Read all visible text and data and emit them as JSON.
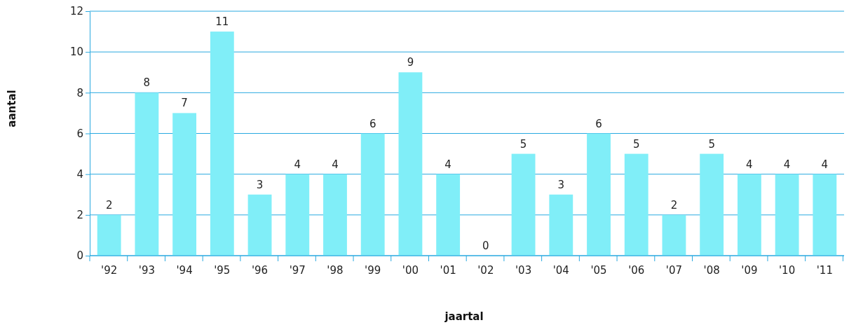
{
  "chart_data": {
    "type": "bar",
    "xlabel": "jaartal",
    "ylabel": "aantal",
    "categories": [
      "'92",
      "'93",
      "'94",
      "'95",
      "'96",
      "'97",
      "'98",
      "'99",
      "'00",
      "'01",
      "'02",
      "'03",
      "'04",
      "'05",
      "'06",
      "'07",
      "'08",
      "'09",
      "'10",
      "'11"
    ],
    "values": [
      2,
      8,
      7,
      11,
      3,
      4,
      4,
      6,
      9,
      4,
      0,
      5,
      3,
      6,
      5,
      2,
      5,
      4,
      4,
      4
    ],
    "color": "#80eef8",
    "ylim": [
      0,
      12
    ],
    "yticks": [
      0,
      2,
      4,
      6,
      8,
      10,
      12
    ],
    "grid": "y",
    "data_labels": true
  }
}
